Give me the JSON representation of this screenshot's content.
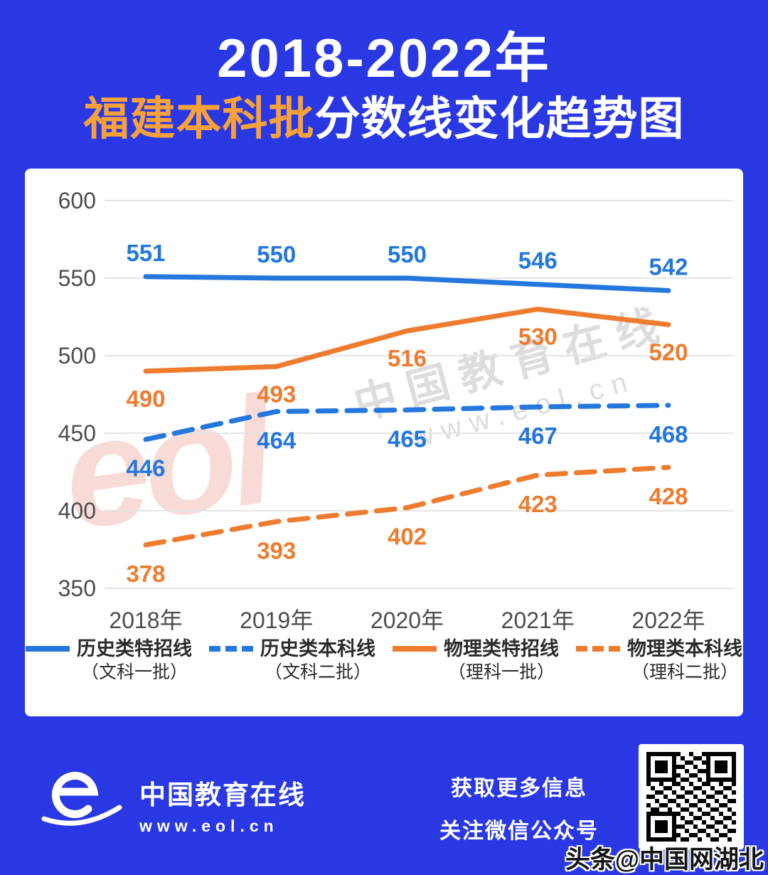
{
  "header": {
    "title_line1": "2018-2022年",
    "title_highlight": "福建本科批",
    "title_rest": "分数线变化趋势图"
  },
  "chart_data": {
    "type": "line",
    "title": "2018-2022年福建本科批分数线变化趋势图",
    "categories": [
      "2018年",
      "2019年",
      "2020年",
      "2021年",
      "2022年"
    ],
    "series": [
      {
        "name": "历史类特招线",
        "subtitle": "（文科一批）",
        "color": "#2377dd",
        "dash": "solid",
        "values": [
          551,
          550,
          550,
          546,
          542
        ]
      },
      {
        "name": "历史类本科线",
        "subtitle": "（文科二批）",
        "color": "#2377dd",
        "dash": "dashed",
        "values": [
          446,
          464,
          465,
          467,
          468
        ]
      },
      {
        "name": "物理类特招线",
        "subtitle": "（理科一批）",
        "color": "#ee7c2f",
        "dash": "solid",
        "values": [
          490,
          493,
          516,
          530,
          520
        ]
      },
      {
        "name": "物理类本科线",
        "subtitle": "（理科二批）",
        "color": "#ee7c2f",
        "dash": "dashed",
        "values": [
          378,
          393,
          402,
          423,
          428
        ]
      }
    ],
    "ylim": [
      350,
      600
    ],
    "yticks": [
      350,
      400,
      450,
      500,
      550,
      600
    ],
    "grid": true,
    "legend_position": "bottom"
  },
  "watermark": {
    "line1": "中国教育在线",
    "line2": "www.eol.cn",
    "logo": "eol"
  },
  "footer": {
    "brand_name": "中国教育在线",
    "brand_url": "www.eol.cn",
    "cta_line1": "获取更多信息",
    "cta_line2": "关注微信公众号",
    "credit": "头条@中国网湖北"
  },
  "colors": {
    "background": "#2a38e4",
    "title_highlight": "#f7a13b",
    "blue_line": "#2377dd",
    "orange_line": "#ee7c2f",
    "grid": "#e4e4e4",
    "axis_text": "#4d4d4d"
  }
}
